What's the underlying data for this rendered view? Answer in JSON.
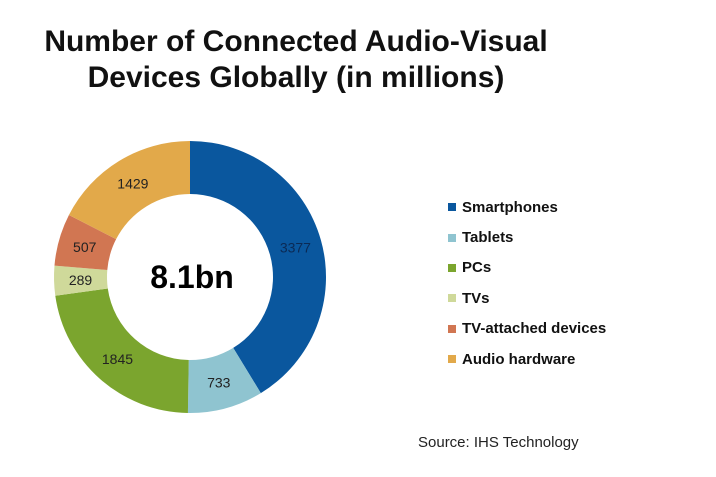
{
  "chart_data": {
    "type": "pie",
    "title": "Number of Connected Audio-Visual Devices Globally (in millions)",
    "center_label": "8.1bn",
    "donut": true,
    "categories": [
      "Smartphones",
      "Tablets",
      "PCs",
      "TVs",
      "TV-attached devices",
      "Audio hardware"
    ],
    "values": [
      3377,
      733,
      1845,
      289,
      507,
      1429
    ],
    "colors": [
      "#0a579e",
      "#8fc4d0",
      "#7ba52e",
      "#cfd99a",
      "#d17652",
      "#e2a94a"
    ],
    "legend_position": "right",
    "source": "Source: IHS Technology"
  }
}
